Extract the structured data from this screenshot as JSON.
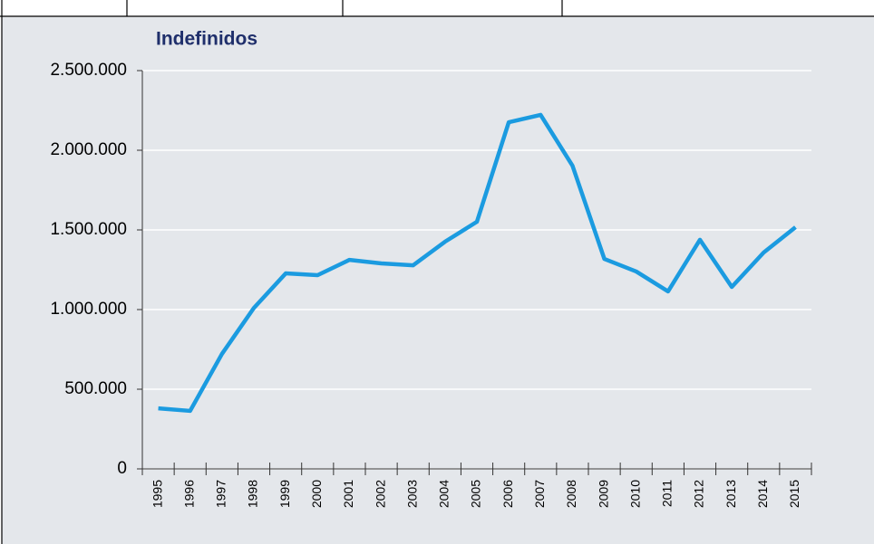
{
  "chart_data": {
    "type": "line",
    "title": "Indefinidos",
    "categories": [
      "1995",
      "1996",
      "1997",
      "1998",
      "1999",
      "2000",
      "2001",
      "2002",
      "2003",
      "2004",
      "2005",
      "2006",
      "2007",
      "2008",
      "2009",
      "2010",
      "2011",
      "2012",
      "2013",
      "2014",
      "2015"
    ],
    "values": [
      380000,
      364000,
      722000,
      1010000,
      1227000,
      1216000,
      1312000,
      1290000,
      1278000,
      1426000,
      1551000,
      2176000,
      2222000,
      1903000,
      1318000,
      1239000,
      1114000,
      1438000,
      1142000,
      1358000,
      1517000
    ],
    "color": "#1b9be0",
    "ylim": [
      0,
      2500000
    ],
    "yticks": [
      0,
      {
        "value": 500000,
        "label": "500.000"
      },
      {
        "value": 1000000,
        "label": "1.000.000"
      },
      {
        "value": 1500000,
        "label": "1.500.000"
      },
      {
        "value": 2000000,
        "label": "2.000.000"
      },
      {
        "value": 2500000,
        "label": "2.500.000"
      }
    ],
    "grid": true
  }
}
